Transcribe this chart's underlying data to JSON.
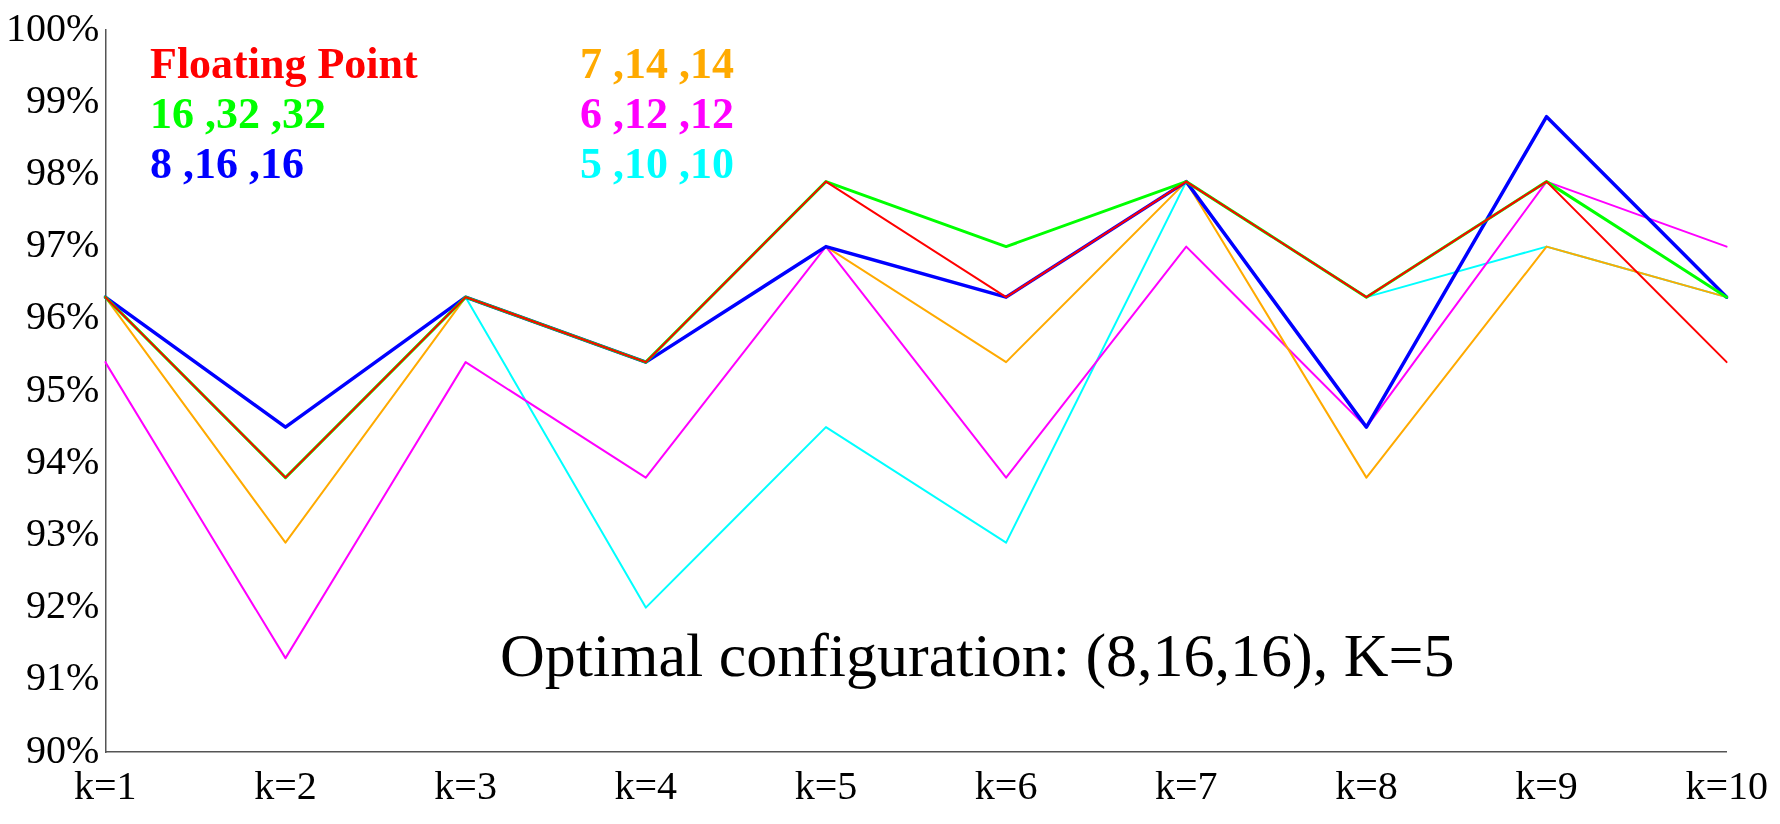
{
  "chart_data": {
    "type": "line",
    "categories": [
      "k=1",
      "k=2",
      "k=3",
      "k=4",
      "k=5",
      "k=6",
      "k=7",
      "k=8",
      "k=9",
      "k=10"
    ],
    "ylim": [
      90,
      100
    ],
    "yticks": [
      {
        "value": 90,
        "label": "90%"
      },
      {
        "value": 91,
        "label": "91%"
      },
      {
        "value": 92,
        "label": "92%"
      },
      {
        "value": 93,
        "label": "93%"
      },
      {
        "value": 94,
        "label": "94%"
      },
      {
        "value": 95,
        "label": "95%"
      },
      {
        "value": 96,
        "label": "96%"
      },
      {
        "value": 97,
        "label": "97%"
      },
      {
        "value": 98,
        "label": "98%"
      },
      {
        "value": 99,
        "label": "99%"
      },
      {
        "value": 100,
        "label": "100%"
      }
    ],
    "grid": false,
    "legend": "top left",
    "marker": "none",
    "line_style": "solid",
    "series": [
      {
        "name": "Floating Point",
        "color": "#ff0000",
        "values": [
          96.3,
          93.8,
          96.3,
          95.4,
          97.9,
          96.3,
          97.9,
          96.3,
          97.9,
          95.4
        ]
      },
      {
        "name": "16 ,32 ,32",
        "color": "#00ff00",
        "values": [
          96.3,
          93.8,
          96.3,
          95.4,
          97.9,
          97.0,
          97.9,
          96.3,
          97.9,
          96.3
        ]
      },
      {
        "name": "8 ,16 ,16",
        "color": "#0000ff",
        "values": [
          96.3,
          94.5,
          96.3,
          95.4,
          97.0,
          96.3,
          97.9,
          94.5,
          98.8,
          96.3
        ]
      },
      {
        "name": "7 ,14 ,14",
        "color": "#ffaa00",
        "values": [
          96.3,
          92.9,
          96.3,
          95.4,
          97.0,
          95.4,
          97.9,
          93.8,
          97.0,
          96.3
        ]
      },
      {
        "name": "6 ,12 ,12",
        "color": "#ff00ff",
        "values": [
          95.4,
          91.3,
          95.4,
          93.8,
          97.0,
          93.8,
          97.0,
          94.5,
          97.9,
          97.0
        ]
      },
      {
        "name": "5 ,10 ,10",
        "color": "#00ffff",
        "values": [
          null,
          null,
          96.3,
          92.0,
          94.5,
          92.9,
          97.9,
          96.3,
          97.0,
          96.3
        ]
      }
    ],
    "annotations": [
      "Optimal configuration: (8,16,16), K=5"
    ]
  }
}
